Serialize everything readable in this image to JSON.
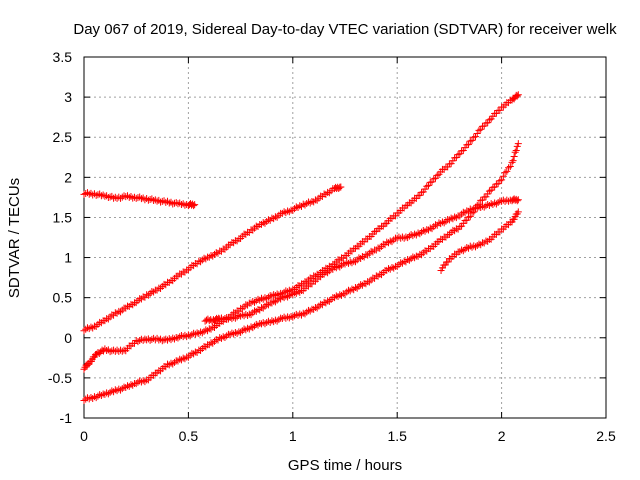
{
  "chart_data": {
    "type": "scatter",
    "title": "Day 067 of 2019, Sidereal Day-to-day VTEC variation (SDTVAR) for receiver welk",
    "xlabel": "GPS time / hours",
    "ylabel": "SDTVAR / TECUs",
    "xlim": [
      0,
      2.5
    ],
    "ylim": [
      -1,
      3.5
    ],
    "xticks": [
      "0",
      "0.5",
      "1",
      "1.5",
      "2",
      "2.5"
    ],
    "yticks": [
      "-1",
      "-0.5",
      "0",
      "0.5",
      "1",
      "1.5",
      "2",
      "2.5",
      "3",
      "3.5"
    ],
    "grid": true,
    "marker": "plus",
    "color": "#ff0000",
    "series": [
      {
        "points": [
          [
            0.0,
            1.8
          ],
          [
            0.05,
            1.79
          ],
          [
            0.1,
            1.77
          ],
          [
            0.15,
            1.74
          ],
          [
            0.2,
            1.76
          ],
          [
            0.25,
            1.75
          ],
          [
            0.3,
            1.73
          ],
          [
            0.35,
            1.71
          ],
          [
            0.4,
            1.69
          ],
          [
            0.45,
            1.67
          ],
          [
            0.5,
            1.66
          ],
          [
            0.53,
            1.66
          ]
        ]
      },
      {
        "points": [
          [
            0.0,
            0.1
          ],
          [
            0.05,
            0.14
          ],
          [
            0.1,
            0.22
          ],
          [
            0.15,
            0.3
          ],
          [
            0.2,
            0.37
          ],
          [
            0.25,
            0.45
          ],
          [
            0.3,
            0.53
          ],
          [
            0.35,
            0.6
          ],
          [
            0.4,
            0.68
          ],
          [
            0.45,
            0.77
          ],
          [
            0.5,
            0.86
          ],
          [
            0.55,
            0.95
          ],
          [
            0.6,
            1.01
          ],
          [
            0.65,
            1.07
          ],
          [
            0.7,
            1.16
          ],
          [
            0.75,
            1.25
          ],
          [
            0.8,
            1.34
          ],
          [
            0.85,
            1.42
          ],
          [
            0.9,
            1.48
          ],
          [
            0.95,
            1.55
          ],
          [
            1.0,
            1.6
          ],
          [
            1.05,
            1.66
          ],
          [
            1.1,
            1.7
          ],
          [
            1.15,
            1.78
          ],
          [
            1.2,
            1.86
          ],
          [
            1.23,
            1.88
          ]
        ]
      },
      {
        "points": [
          [
            0.0,
            -0.38
          ],
          [
            0.03,
            -0.3
          ],
          [
            0.06,
            -0.2
          ],
          [
            0.1,
            -0.15
          ],
          [
            0.15,
            -0.17
          ],
          [
            0.2,
            -0.15
          ],
          [
            0.25,
            -0.04
          ],
          [
            0.3,
            -0.02
          ],
          [
            0.35,
            -0.02
          ],
          [
            0.4,
            -0.03
          ],
          [
            0.45,
            0.01
          ],
          [
            0.5,
            0.03
          ],
          [
            0.55,
            0.06
          ],
          [
            0.6,
            0.1
          ],
          [
            0.65,
            0.18
          ],
          [
            0.7,
            0.27
          ],
          [
            0.75,
            0.36
          ],
          [
            0.8,
            0.44
          ],
          [
            0.85,
            0.48
          ],
          [
            0.9,
            0.52
          ],
          [
            0.95,
            0.56
          ],
          [
            1.0,
            0.6
          ],
          [
            1.05,
            0.68
          ],
          [
            1.1,
            0.76
          ],
          [
            1.15,
            0.84
          ],
          [
            1.2,
            0.93
          ],
          [
            1.25,
            1.02
          ],
          [
            1.3,
            1.12
          ],
          [
            1.35,
            1.22
          ],
          [
            1.4,
            1.33
          ],
          [
            1.45,
            1.44
          ],
          [
            1.5,
            1.55
          ],
          [
            1.55,
            1.66
          ],
          [
            1.6,
            1.76
          ],
          [
            1.65,
            1.9
          ],
          [
            1.7,
            2.05
          ],
          [
            1.75,
            2.16
          ],
          [
            1.8,
            2.3
          ],
          [
            1.85,
            2.44
          ],
          [
            1.9,
            2.6
          ],
          [
            1.95,
            2.74
          ],
          [
            2.0,
            2.87
          ],
          [
            2.05,
            2.97
          ],
          [
            2.08,
            3.03
          ]
        ]
      },
      {
        "points": [
          [
            0.0,
            -0.77
          ],
          [
            0.05,
            -0.74
          ],
          [
            0.1,
            -0.7
          ],
          [
            0.15,
            -0.66
          ],
          [
            0.2,
            -0.62
          ],
          [
            0.25,
            -0.56
          ],
          [
            0.3,
            -0.53
          ],
          [
            0.35,
            -0.43
          ],
          [
            0.4,
            -0.34
          ],
          [
            0.45,
            -0.29
          ],
          [
            0.5,
            -0.23
          ],
          [
            0.55,
            -0.16
          ],
          [
            0.6,
            -0.08
          ],
          [
            0.65,
            -0.01
          ],
          [
            0.7,
            0.04
          ],
          [
            0.75,
            0.08
          ],
          [
            0.8,
            0.13
          ],
          [
            0.85,
            0.18
          ],
          [
            0.9,
            0.2
          ],
          [
            0.95,
            0.24
          ],
          [
            1.0,
            0.27
          ],
          [
            1.05,
            0.3
          ],
          [
            1.1,
            0.36
          ],
          [
            1.15,
            0.43
          ],
          [
            1.2,
            0.5
          ],
          [
            1.25,
            0.56
          ],
          [
            1.3,
            0.62
          ],
          [
            1.35,
            0.68
          ],
          [
            1.4,
            0.76
          ],
          [
            1.45,
            0.84
          ],
          [
            1.5,
            0.9
          ],
          [
            1.55,
            0.97
          ],
          [
            1.6,
            1.02
          ],
          [
            1.65,
            1.1
          ],
          [
            1.7,
            1.2
          ],
          [
            1.75,
            1.3
          ],
          [
            1.8,
            1.38
          ],
          [
            1.85,
            1.52
          ],
          [
            1.9,
            1.7
          ],
          [
            1.95,
            1.84
          ],
          [
            2.0,
            1.98
          ],
          [
            2.05,
            2.18
          ],
          [
            2.08,
            2.42
          ]
        ]
      },
      {
        "points": [
          [
            0.58,
            0.22
          ],
          [
            0.62,
            0.22
          ],
          [
            0.65,
            0.24
          ],
          [
            0.7,
            0.24
          ],
          [
            0.75,
            0.27
          ],
          [
            0.8,
            0.3
          ],
          [
            0.85,
            0.37
          ],
          [
            0.9,
            0.44
          ],
          [
            0.95,
            0.5
          ],
          [
            1.0,
            0.54
          ],
          [
            1.05,
            0.6
          ],
          [
            1.1,
            0.7
          ],
          [
            1.15,
            0.8
          ],
          [
            1.2,
            0.87
          ],
          [
            1.25,
            0.92
          ],
          [
            1.3,
            0.96
          ],
          [
            1.35,
            1.03
          ],
          [
            1.4,
            1.1
          ],
          [
            1.45,
            1.18
          ],
          [
            1.5,
            1.24
          ],
          [
            1.55,
            1.26
          ],
          [
            1.6,
            1.3
          ],
          [
            1.65,
            1.35
          ],
          [
            1.7,
            1.42
          ],
          [
            1.75,
            1.47
          ],
          [
            1.8,
            1.53
          ],
          [
            1.85,
            1.6
          ],
          [
            1.9,
            1.63
          ],
          [
            1.95,
            1.66
          ],
          [
            2.0,
            1.7
          ],
          [
            2.05,
            1.72
          ],
          [
            2.08,
            1.72
          ]
        ]
      },
      {
        "points": [
          [
            1.71,
            0.85
          ],
          [
            1.75,
            0.98
          ],
          [
            1.8,
            1.08
          ],
          [
            1.85,
            1.13
          ],
          [
            1.9,
            1.16
          ],
          [
            1.95,
            1.24
          ],
          [
            2.0,
            1.35
          ],
          [
            2.05,
            1.45
          ],
          [
            2.08,
            1.57
          ]
        ]
      }
    ]
  }
}
